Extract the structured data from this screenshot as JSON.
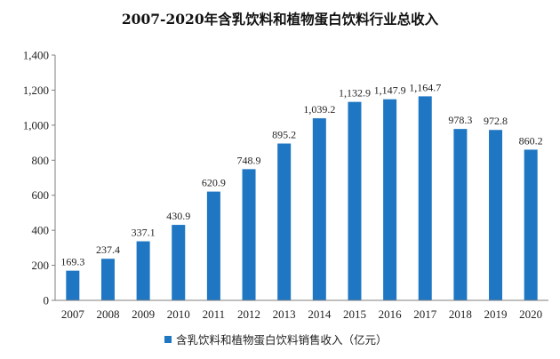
{
  "chart_data": {
    "type": "bar",
    "title": "2007-2020年含乳饮料和植物蛋白饮料行业总收入",
    "categories": [
      "2007",
      "2008",
      "2009",
      "2010",
      "2011",
      "2012",
      "2013",
      "2014",
      "2015",
      "2016",
      "2017",
      "2018",
      "2019",
      "2020"
    ],
    "series": [
      {
        "name": "含乳饮料和植物蛋白饮料销售收入（亿元）",
        "values": [
          169.3,
          237.4,
          337.1,
          430.9,
          620.9,
          748.9,
          895.2,
          1039.2,
          1132.9,
          1147.9,
          1164.7,
          978.3,
          972.8,
          860.2
        ],
        "labels": [
          "169.3",
          "237.4",
          "337.1",
          "430.9",
          "620.9",
          "748.9",
          "895.2",
          "1,039.2",
          "1,132.9",
          "1,147.9",
          "1,164.7",
          "978.3",
          "972.8",
          "860.2"
        ],
        "color": "#1f77c4"
      }
    ],
    "ylim": [
      0,
      1400
    ],
    "yticks": [
      0,
      200,
      400,
      600,
      800,
      1000,
      1200,
      1400
    ],
    "ytick_labels": [
      "0",
      "200",
      "400",
      "600",
      "800",
      "1,000",
      "1,200",
      "1,400"
    ],
    "xlabel": "",
    "ylabel": "",
    "grid": false,
    "legend_position": "bottom"
  }
}
